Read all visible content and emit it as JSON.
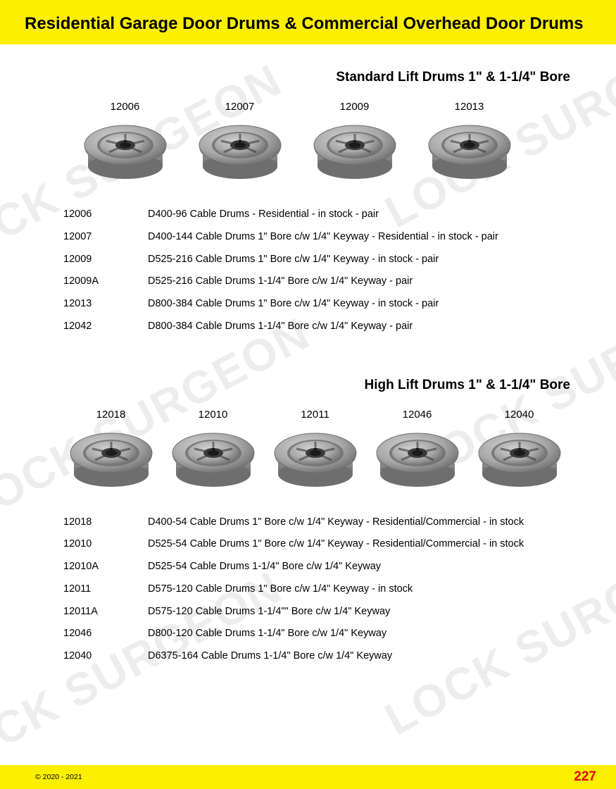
{
  "colors": {
    "header_bg": "#fdef00",
    "footer_bg": "#fdef00",
    "page_bg": "#ffffff",
    "text": "#000000",
    "page_num": "#e30613",
    "watermark": "rgba(0,0,0,0.07)",
    "drum_body": "#a8a8a8",
    "drum_shadow": "#6e6e6e",
    "drum_highlight": "#d4d4d4",
    "drum_dark": "#3a3a3a"
  },
  "header": {
    "title": "Residential Garage Door Drums & Commercial Overhead Door Drums"
  },
  "watermark_text": "LOCK SURGEON",
  "section1": {
    "title": "Standard Lift Drums 1\" & 1-1/4\" Bore",
    "thumbs": [
      {
        "label": "12006"
      },
      {
        "label": "12007"
      },
      {
        "label": "12009"
      },
      {
        "label": "12013"
      }
    ],
    "specs": [
      {
        "code": "12006",
        "desc": "D400-96 Cable Drums - Residential - in stock - pair"
      },
      {
        "code": "12007",
        "desc": "D400-144 Cable Drums 1\" Bore c/w 1/4\" Keyway - Residential - in stock - pair"
      },
      {
        "code": "12009",
        "desc": "D525-216 Cable Drums 1\" Bore c/w 1/4\" Keyway - in stock - pair"
      },
      {
        "code": "12009A",
        "desc": "D525-216 Cable Drums 1-1/4\" Bore c/w 1/4\" Keyway - pair"
      },
      {
        "code": "12013",
        "desc": "D800-384 Cable Drums 1\" Bore c/w 1/4\" Keyway - in stock - pair"
      },
      {
        "code": "12042",
        "desc": "D800-384 Cable Drums 1-1/4\" Bore c/w 1/4\" Keyway  - pair"
      }
    ]
  },
  "section2": {
    "title": "High Lift Drums 1\" & 1-1/4\" Bore",
    "thumbs": [
      {
        "label": "12018"
      },
      {
        "label": "12010"
      },
      {
        "label": "12011"
      },
      {
        "label": "12046"
      },
      {
        "label": "12040"
      }
    ],
    "specs": [
      {
        "code": "12018",
        "desc": "D400-54 Cable Drums 1\" Bore c/w 1/4\" Keyway - Residential/Commercial - in stock"
      },
      {
        "code": "12010",
        "desc": "D525-54 Cable Drums 1\" Bore c/w 1/4\" Keyway - Residential/Commercial - in stock"
      },
      {
        "code": "12010A",
        "desc": "D525-54 Cable Drums 1-1/4\" Bore c/w 1/4\" Keyway"
      },
      {
        "code": "12011",
        "desc": "D575-120 Cable Drums 1\" Bore c/w 1/4\" Keyway - in stock"
      },
      {
        "code": "12011A",
        "desc": "D575-120 Cable Drums 1-1/4\"\" Bore c/w 1/4\" Keyway"
      },
      {
        "code": "12046",
        "desc": "D800-120 Cable Drums 1-1/4\" Bore c/w 1/4\" Keyway"
      },
      {
        "code": "12040",
        "desc": "D6375-164 Cable Drums 1-1/4\" Bore c/w 1/4\" Keyway"
      }
    ]
  },
  "footer": {
    "copyright": "© 2020 - 2021",
    "page": "227"
  }
}
